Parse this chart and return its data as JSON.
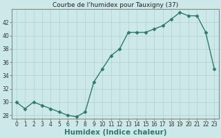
{
  "x": [
    0,
    1,
    2,
    3,
    4,
    5,
    6,
    7,
    8,
    9,
    10,
    11,
    12,
    13,
    14,
    15,
    16,
    17,
    18,
    19,
    20,
    21,
    22,
    23
  ],
  "y": [
    30,
    29,
    30,
    29.5,
    29,
    28.5,
    28,
    27.8,
    28.5,
    33,
    35,
    37,
    38,
    40.5,
    40.5,
    40.5,
    41,
    41.5,
    42.5,
    43.5,
    43,
    43,
    40.5,
    35
  ],
  "title": "Courbe de l'humidex pour Tauxigny (37)",
  "xlabel": "Humidex (Indice chaleur)",
  "xlim_min": -0.5,
  "xlim_max": 23.5,
  "ylim_min": 27.5,
  "ylim_max": 44.0,
  "yticks": [
    28,
    30,
    32,
    34,
    36,
    38,
    40,
    42
  ],
  "xticks": [
    0,
    1,
    2,
    3,
    4,
    5,
    6,
    7,
    8,
    9,
    10,
    11,
    12,
    13,
    14,
    15,
    16,
    17,
    18,
    19,
    20,
    21,
    22,
    23
  ],
  "line_color": "#2d7a6a",
  "bg_color": "#cce8e8",
  "grid_color": "#b0d0d0",
  "spine_color": "#888888",
  "xlabel_color": "#2d7a6a",
  "title_color": "#222222",
  "tick_color": "#333333",
  "title_fontsize": 6.5,
  "xlabel_fontsize": 7.5,
  "tick_fontsize": 5.5,
  "linewidth": 1.0,
  "markersize": 2.5
}
